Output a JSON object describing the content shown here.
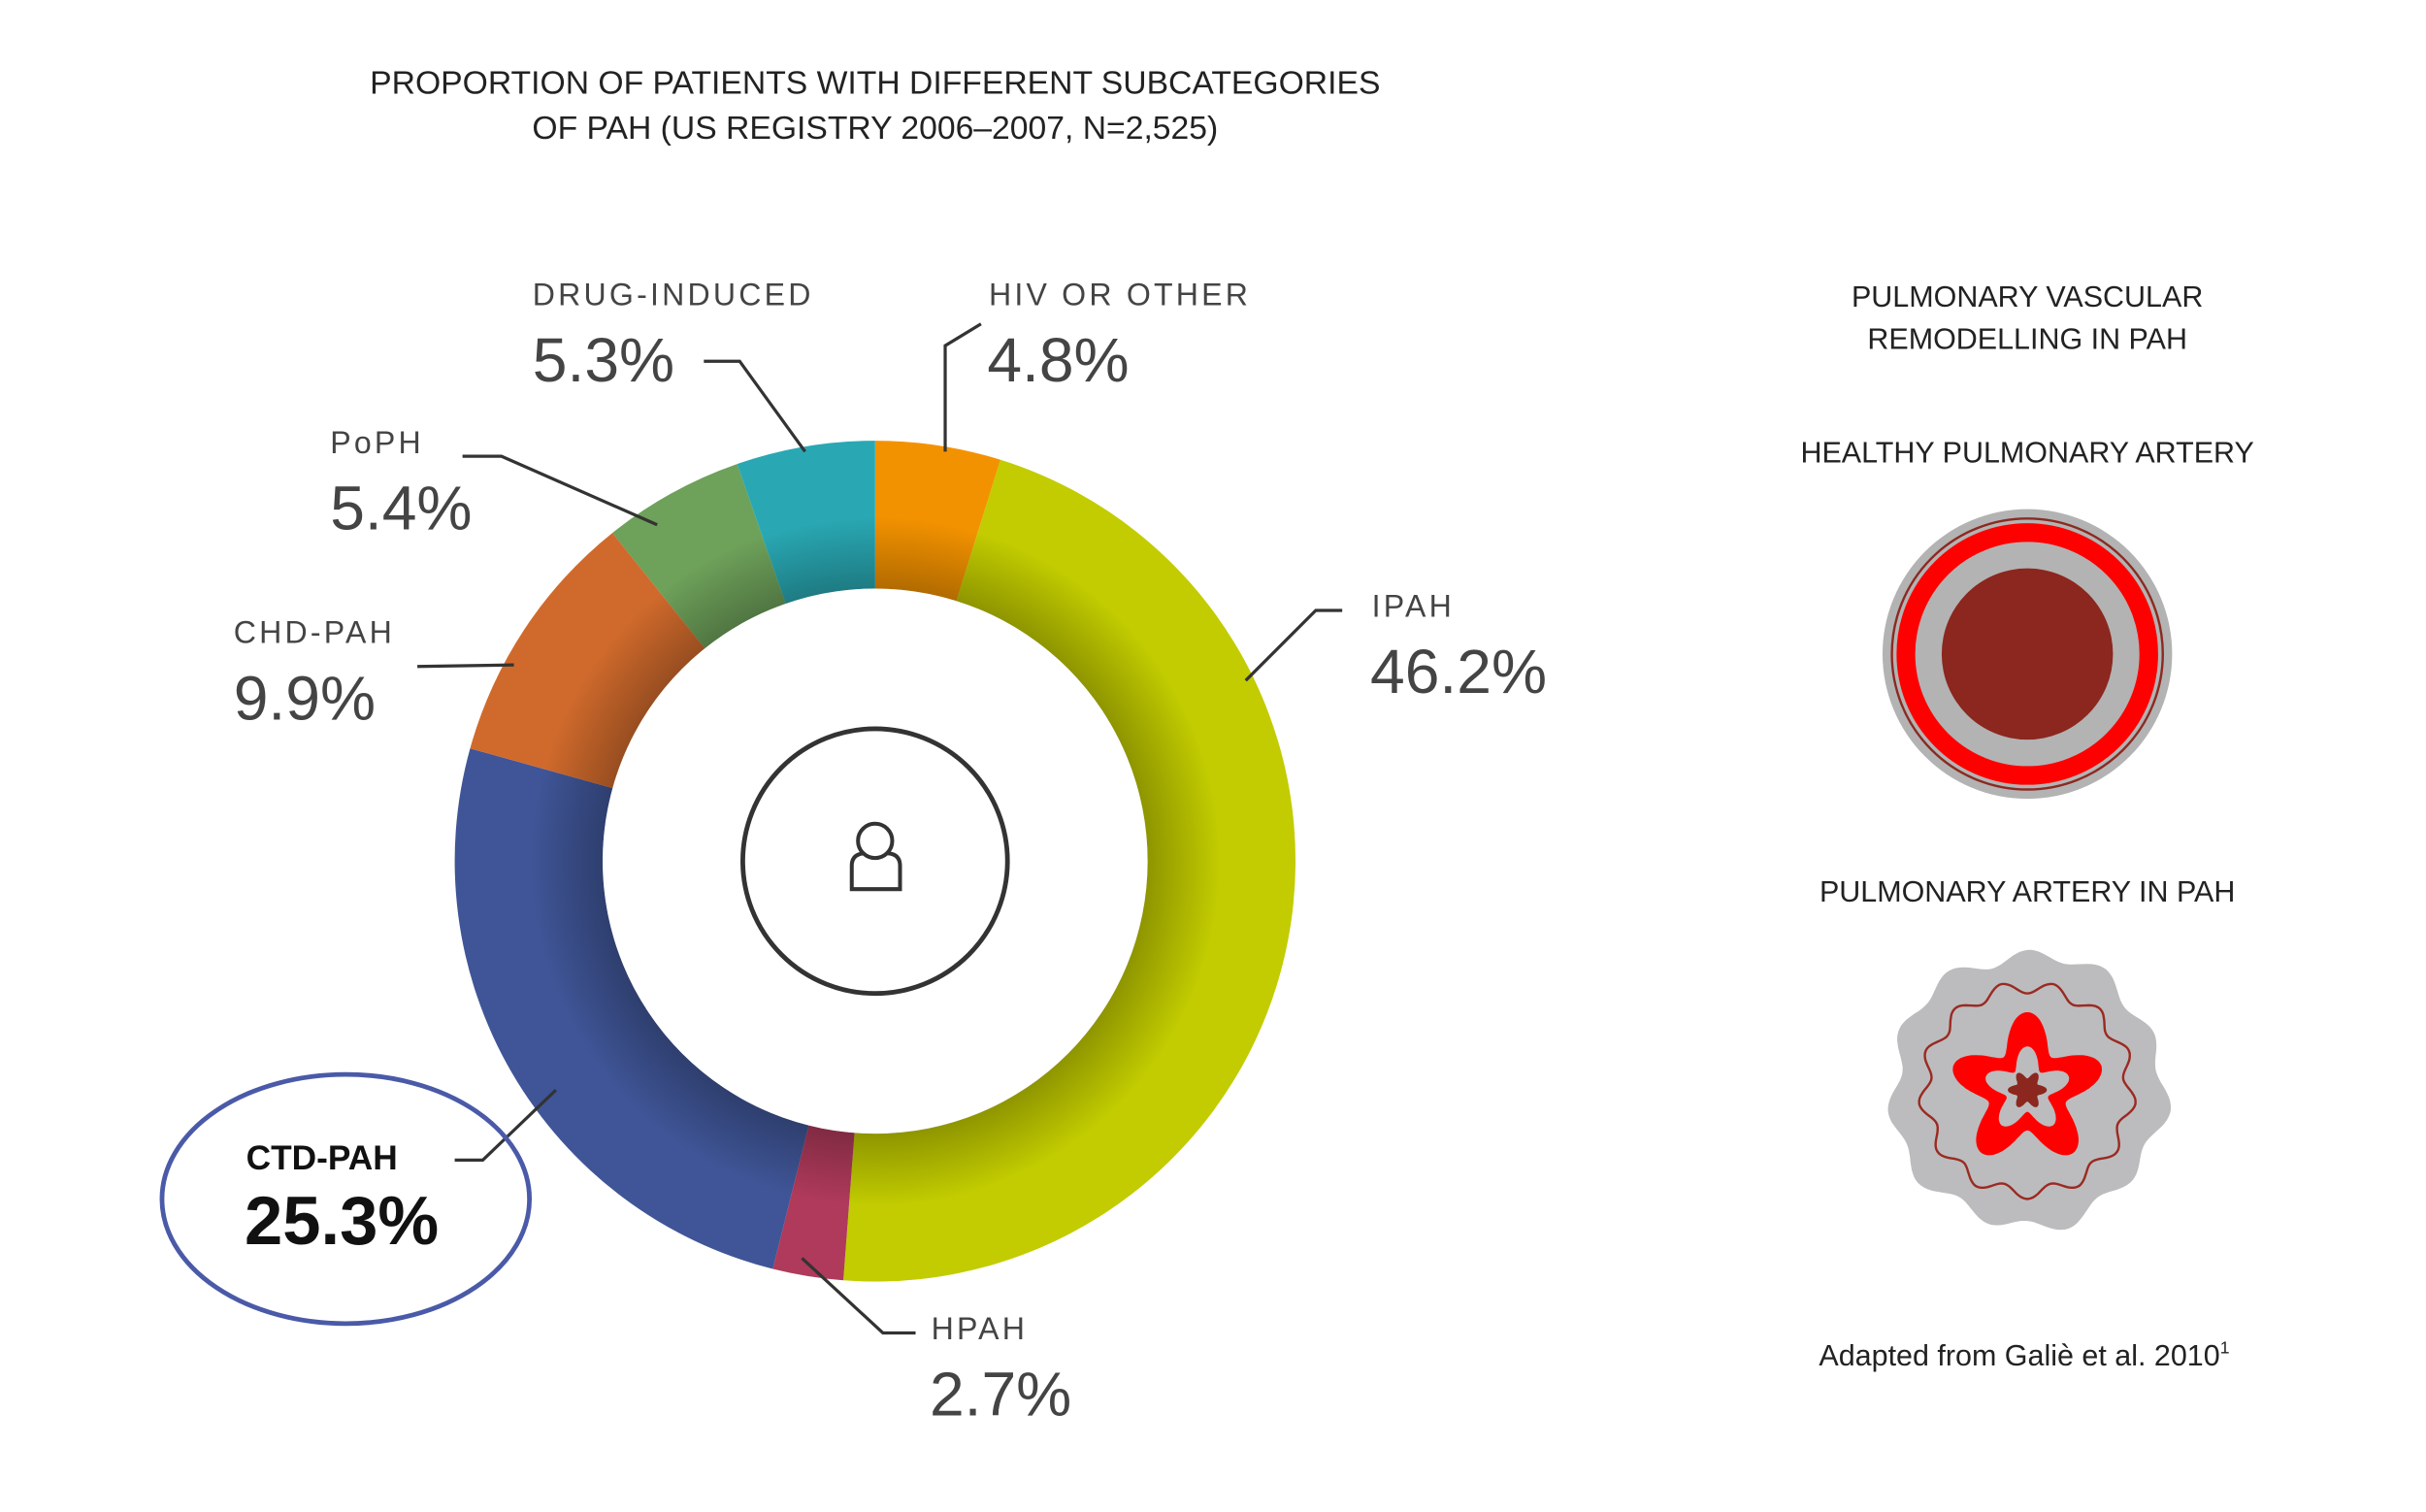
{
  "chart_data": {
    "type": "pie",
    "variant": "donut",
    "title": "PROPORTION OF PATIENTS WITH DIFFERENT SUBCATEGORIES OF PAH (US REGISTRY 2006–2007, N=2,525)",
    "title_lines": [
      "PROPORTION OF PATIENTS WITH DIFFERENT SUBCATEGORIES",
      "OF PAH (US REGISTRY 2006–2007, N=2,525)"
    ],
    "center_icon": "person-icon",
    "highlighted": "CTD-PAH",
    "highlight_color": "#4a5aa8",
    "slices": [
      {
        "label": "HIV OR OTHER",
        "value": 4.8,
        "display": "4.8%",
        "color": "#f39200"
      },
      {
        "label": "IPAH",
        "value": 46.2,
        "display": "46.2%",
        "color": "#c2cc00"
      },
      {
        "label": "HPAH",
        "value": 2.7,
        "display": "2.7%",
        "color": "#b03a5b"
      },
      {
        "label": "CTD-PAH",
        "value": 25.3,
        "display": "25.3%",
        "color": "#3f5597"
      },
      {
        "label": "CHD-PAH",
        "value": 9.9,
        "display": "9.9%",
        "color": "#d06a2c"
      },
      {
        "label": "PoPH",
        "value": 5.4,
        "display": "5.4%",
        "color": "#6ea15a"
      },
      {
        "label": "DRUG-INDUCED",
        "value": 5.3,
        "display": "5.3%",
        "color": "#29a8b3"
      }
    ]
  },
  "side_panel": {
    "title_lines": [
      "PULMONARY VASCULAR",
      "REMODELLING IN PAH"
    ],
    "healthy_label": "HEALTHY PULMONARY ARTERY",
    "pah_label": "PULMONARY ARTERY IN PAH",
    "source": "Adapted from Galiè et al. 2010",
    "source_sup": "1"
  }
}
